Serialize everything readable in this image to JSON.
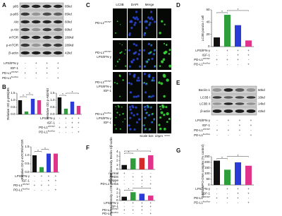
{
  "panel_labels": [
    "A",
    "B",
    "C",
    "D",
    "E",
    "F",
    "G"
  ],
  "conditions": [
    {
      "label": "LPS/IFN-γ",
      "signs": [
        "-",
        "+",
        "+",
        "+"
      ]
    },
    {
      "label": "IGF-1",
      "signs": [
        "-",
        "-",
        "+",
        "+"
      ]
    },
    {
      "label": "PD-L1",
      "sup": "WT/WT",
      "signs": [
        "+",
        "+",
        "+",
        "-"
      ]
    },
    {
      "label": "PD-L1",
      "sup": "flox/flox",
      "signs": [
        "-",
        "-",
        "-",
        "+"
      ]
    }
  ],
  "conditions_f": [
    {
      "label": "normal",
      "signs": [
        "+",
        "-",
        "-",
        "-"
      ]
    },
    {
      "label": "ARDS",
      "signs": [
        "-",
        "+",
        "+",
        "+"
      ]
    },
    {
      "label": "Isotype",
      "signs": [
        "-",
        "-",
        "+",
        "-"
      ]
    },
    {
      "label": "PD-L1 mAbs",
      "signs": [
        "-",
        "-",
        "-",
        "+"
      ]
    }
  ],
  "blot_a": [
    {
      "name": "p85",
      "size": "85kd"
    },
    {
      "name": "p-p85",
      "size": "85kd"
    },
    {
      "name": "Akt",
      "size": "60kd"
    },
    {
      "name": "p-Akt",
      "size": "60kd"
    },
    {
      "name": "mTOR",
      "size": "289kd"
    },
    {
      "name": "p-mTOR",
      "size": "289kd"
    },
    {
      "name": "β-actin",
      "size": "42kd"
    }
  ],
  "blot_e": [
    {
      "name": "Beclin-1",
      "size": "60kd"
    },
    {
      "name": "LC3B I",
      "size": "16kd"
    },
    {
      "name": "LC3B II",
      "size": "14kd"
    },
    {
      "name": "β-actin",
      "size": "42kd"
    }
  ],
  "microscopy": {
    "columns": [
      {
        "label": "LC3B",
        "color": "#1faa1f"
      },
      {
        "label": "DAPI",
        "color": "#2233dd"
      },
      {
        "label": "Merge",
        "color": "#000000"
      }
    ],
    "rows": [
      [
        {
          "label": "PD-L1",
          "sup": "WT/WT"
        }
      ],
      [
        {
          "label": "PD-L1",
          "sup": "WT/WT"
        },
        {
          "label": "LPS/IFN-γ"
        }
      ],
      [
        {
          "label": "PD-L1",
          "sup": "WT/WT"
        },
        {
          "label": "LPS/IFN-γ"
        },
        {
          "label": "IGF-1"
        }
      ],
      [
        {
          "label": "PD-L1",
          "sup": "flox/flox"
        },
        {
          "label": "LPS/IFN-γ"
        },
        {
          "label": "IGF-1"
        }
      ]
    ],
    "scale_bar": "Scale bar: 10μm"
  },
  "chart_data": [
    {
      "type": "bar",
      "y_label": "Relative OD p-p85/p85",
      "values": [
        1.0,
        0.2,
        1.1,
        1.0
      ],
      "colors": [
        "#111111",
        "#2e9e3a",
        "#2b3bd6",
        "#e0338a"
      ],
      "ylim": [
        0,
        1.5
      ],
      "yticks": [
        {
          "value": 0,
          "label": "0.0"
        },
        {
          "value": 0.5,
          "label": "0.5"
        },
        {
          "value": 1,
          "label": "1.0"
        },
        {
          "value": 1.5,
          "label": "1.5"
        }
      ],
      "annotations": [
        "*",
        "*"
      ]
    },
    {
      "type": "bar",
      "y_label": "Relative OD p-Akt/Akt",
      "values": [
        1.2,
        0.4,
        0.9,
        0.6
      ],
      "colors": [
        "#111111",
        "#2e9e3a",
        "#2b3bd6",
        "#e0338a"
      ],
      "ylim": [
        0,
        1.5
      ],
      "yticks": [
        {
          "value": 0,
          "label": "0.0"
        },
        {
          "value": 0.5,
          "label": "0.5"
        },
        {
          "value": 1,
          "label": "1.0"
        },
        {
          "value": 1.5,
          "label": "1.5"
        }
      ],
      "annotations": [
        "*",
        "*"
      ]
    },
    {
      "type": "bar",
      "y_label": "Relative OD p-mTOR/mTOR",
      "values": [
        1.0,
        0.3,
        1.1,
        1.1
      ],
      "colors": [
        "#111111",
        "#2e9e3a",
        "#2b3bd6",
        "#e0338a"
      ],
      "ylim": [
        0,
        1.5
      ],
      "yticks": [
        {
          "value": 0,
          "label": "0.0"
        },
        {
          "value": 0.5,
          "label": "0.5"
        },
        {
          "value": 1,
          "label": "1.0"
        },
        {
          "value": 1.5,
          "label": "1.5"
        }
      ],
      "annotations": [
        "*",
        "*"
      ]
    },
    {
      "type": "bar",
      "y_label": "LC3B puncta / cell",
      "values": [
        15,
        52,
        35,
        10
      ],
      "colors": [
        "#111111",
        "#2e9e3a",
        "#2b3bd6",
        "#e0338a"
      ],
      "ylim": [
        0,
        60
      ],
      "yticks": [
        0,
        20,
        40,
        60
      ],
      "annotations": [
        "*",
        "*"
      ]
    },
    {
      "type": "bar",
      "y_label": "Relative intensity Beclin-1/β-actin",
      "values": [
        1.0,
        2.5,
        2.6,
        3.2
      ],
      "colors": [
        "#111111",
        "#2e9e3a",
        "#d62a2a",
        "#e0338a"
      ],
      "ylim": [
        0,
        4
      ],
      "yticks": [
        0,
        1,
        2,
        3,
        4
      ],
      "annotations": [
        "*",
        "*"
      ]
    },
    {
      "type": "bar",
      "y_label": "Relative intensity LC3B-II/LC3B-I",
      "values": [
        1.0,
        2.2,
        1.8,
        1.3
      ],
      "colors": [
        "#111111",
        "#2e9e3a",
        "#2b3bd6",
        "#e0338a"
      ],
      "ylim": [
        0,
        3
      ],
      "yticks": [
        0,
        1,
        2,
        3
      ],
      "annotations": [
        "*",
        "*"
      ]
    },
    {
      "type": "bar",
      "y_label": "NETs: MPO-DNA complex (% control)",
      "values": [
        215,
        135,
        200,
        170
      ],
      "colors": [
        "#111111",
        "#2e9e3a",
        "#2b3bd6",
        "#e0338a"
      ],
      "ylim": [
        0,
        250
      ],
      "yticks": [
        0,
        50,
        100,
        150,
        200,
        250
      ],
      "annotations": [
        "*",
        "*"
      ]
    }
  ]
}
